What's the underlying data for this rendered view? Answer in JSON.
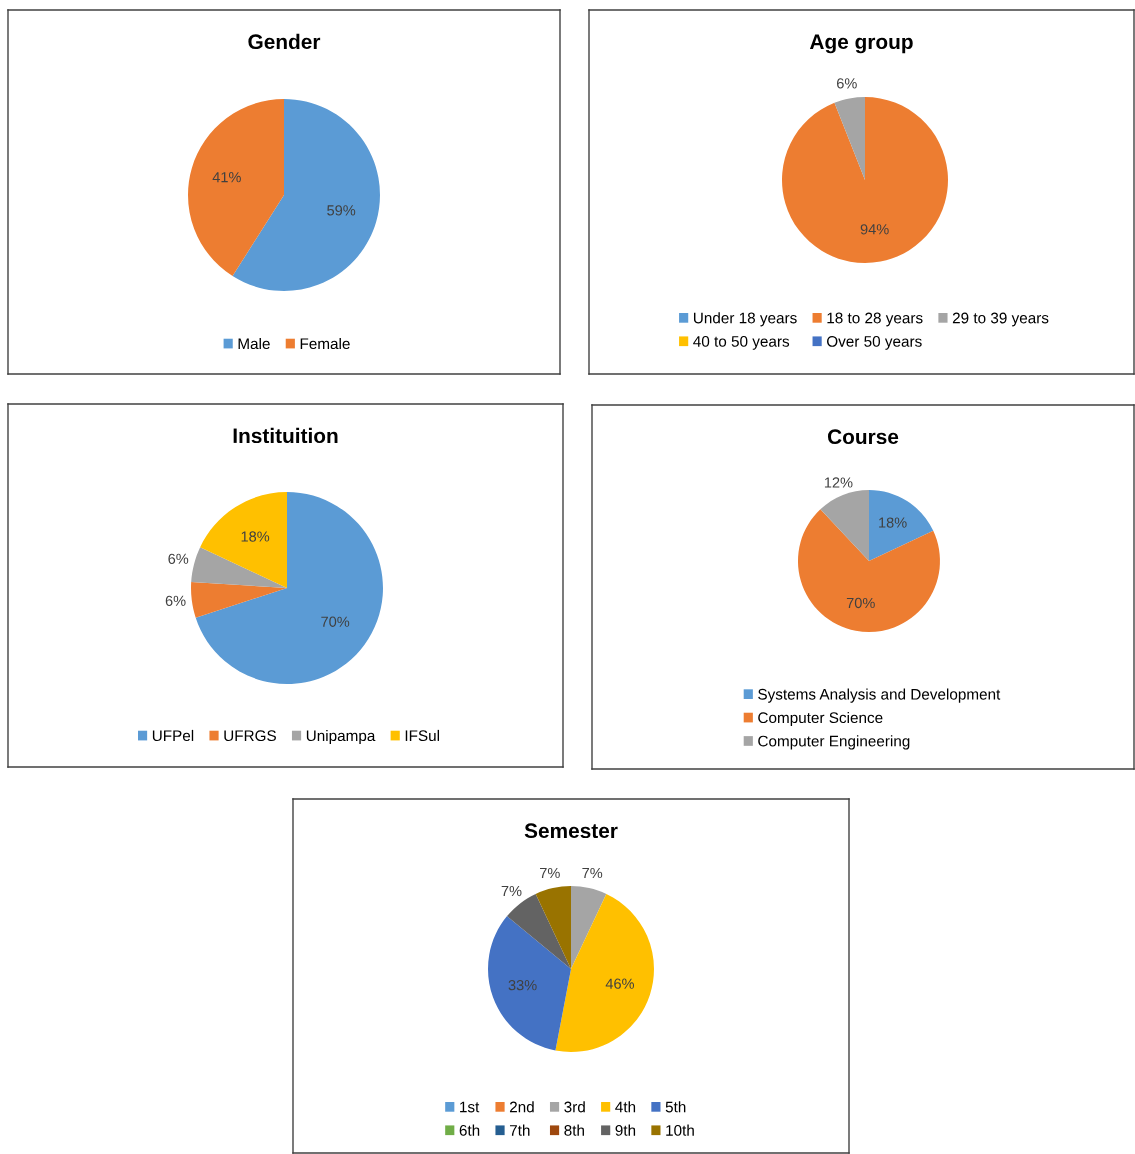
{
  "chart_data": [
    {
      "type": "pie",
      "title": "Gender",
      "legend": "bottom",
      "categories": [
        "Male",
        "Female"
      ],
      "values": [
        59,
        41
      ],
      "colors": [
        "#5b9bd5",
        "#ed7d31"
      ],
      "value_labels": [
        "59%",
        "41%"
      ]
    },
    {
      "type": "pie",
      "title": "Age group",
      "legend": "bottom",
      "categories": [
        "Under 18 years",
        "18 to 28 years",
        "29 to 39 years",
        "40 to 50 years",
        "Over 50 years"
      ],
      "values": [
        0,
        94,
        6,
        0,
        0
      ],
      "colors": [
        "#5b9bd5",
        "#ed7d31",
        "#a5a5a5",
        "#ffc000",
        "#4472c4"
      ],
      "value_labels": [
        null,
        "94%",
        "6%",
        null,
        null
      ]
    },
    {
      "type": "pie",
      "title": "Instituition",
      "legend": "bottom",
      "categories": [
        "UFPel",
        "UFRGS",
        "Unipampa",
        "IFSul"
      ],
      "values": [
        70,
        6,
        6,
        18
      ],
      "colors": [
        "#5b9bd5",
        "#ed7d31",
        "#a5a5a5",
        "#ffc000"
      ],
      "value_labels": [
        "70%",
        "6%",
        "6%",
        "18%"
      ]
    },
    {
      "type": "pie",
      "title": "Course",
      "legend": "bottom",
      "categories": [
        "Systems Analysis and Development",
        "Computer Science",
        "Computer Engineering"
      ],
      "values": [
        18,
        70,
        12
      ],
      "colors": [
        "#5b9bd5",
        "#ed7d31",
        "#a5a5a5"
      ],
      "value_labels": [
        "18%",
        "70%",
        "12%"
      ]
    },
    {
      "type": "pie",
      "title": "Semester",
      "legend": "bottom",
      "categories": [
        "1st",
        "2nd",
        "3rd",
        "4th",
        "5th",
        "6th",
        "7th",
        "8th",
        "9th",
        "10th"
      ],
      "values": [
        0,
        0,
        7,
        46,
        33,
        0,
        0,
        0,
        7,
        7
      ],
      "colors": [
        "#5b9bd5",
        "#ed7d31",
        "#a5a5a5",
        "#ffc000",
        "#4472c4",
        "#70ad47",
        "#255e91",
        "#9e480e",
        "#636363",
        "#997300"
      ],
      "value_labels": [
        null,
        null,
        "7%",
        "46%",
        "33%",
        null,
        null,
        null,
        "7%",
        "7%"
      ]
    }
  ]
}
